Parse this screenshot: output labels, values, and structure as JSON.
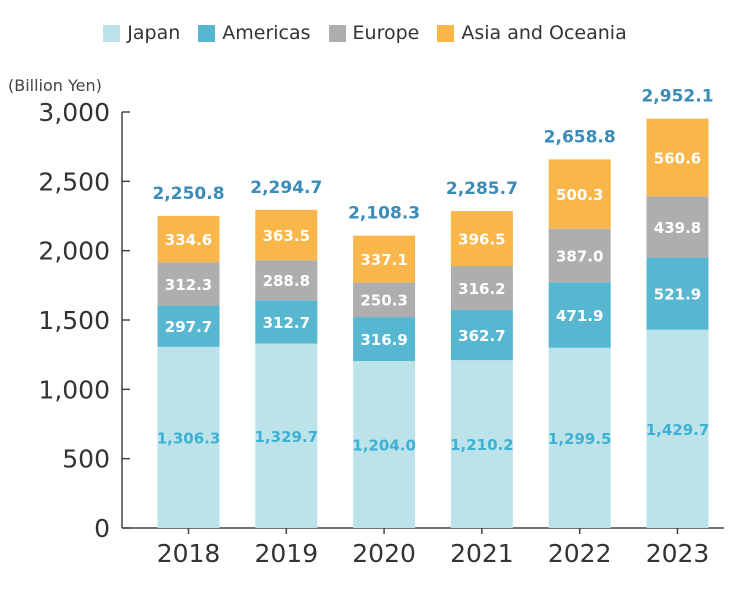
{
  "chart_data": {
    "type": "bar",
    "stacked": true,
    "unit_label": "(Billion Yen)",
    "categories": [
      "2018",
      "2019",
      "2020",
      "2021",
      "2022",
      "2023"
    ],
    "series": [
      {
        "name": "Japan",
        "color": "#bde3ea",
        "label_color": "#3db1d4",
        "values": [
          1306.3,
          1329.7,
          1204.0,
          1210.2,
          1299.5,
          1429.7
        ],
        "labels": [
          "1,306.3",
          "1,329.7",
          "1,204.0",
          "1,210.2",
          "1,299.5",
          "1,429.7"
        ]
      },
      {
        "name": "Americas",
        "color": "#57b7d1",
        "label_color": "#ffffff",
        "values": [
          297.7,
          312.7,
          316.9,
          362.7,
          471.9,
          521.9
        ],
        "labels": [
          "297.7",
          "312.7",
          "316.9",
          "362.7",
          "471.9",
          "521.9"
        ]
      },
      {
        "name": "Europe",
        "color": "#aeaeae",
        "label_color": "#ffffff",
        "values": [
          312.3,
          288.8,
          250.3,
          316.2,
          387.0,
          439.8
        ],
        "labels": [
          "312.3",
          "288.8",
          "250.3",
          "316.2",
          "387.0",
          "439.8"
        ]
      },
      {
        "name": "Asia and Oceania",
        "color": "#f8b64b",
        "label_color": "#ffffff",
        "values": [
          334.6,
          363.5,
          337.1,
          396.5,
          500.3,
          560.6
        ],
        "labels": [
          "334.6",
          "363.5",
          "337.1",
          "396.5",
          "500.3",
          "560.6"
        ]
      }
    ],
    "totals": [
      2250.8,
      2294.7,
      2108.3,
      2285.7,
      2658.8,
      2952.1
    ],
    "total_labels": [
      "2,250.8",
      "2,294.7",
      "2,108.3",
      "2,285.7",
      "2,658.8",
      "2,952.1"
    ],
    "total_label_color": "#3a8cb8",
    "ylim": [
      0,
      3000
    ],
    "yticks": [
      0,
      500,
      1000,
      1500,
      2000,
      2500,
      3000
    ],
    "ytick_labels": [
      "0",
      "500",
      "1,000",
      "1,500",
      "2,000",
      "2,500",
      "3,000"
    ],
    "legend_position": "top-center",
    "grid": false
  }
}
